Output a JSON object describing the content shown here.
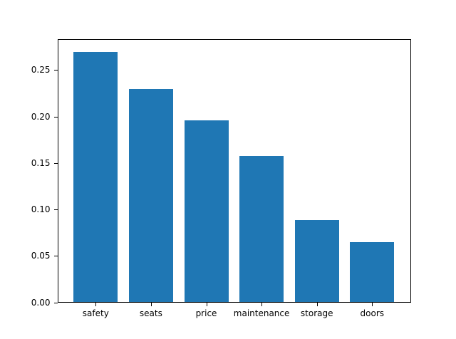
{
  "chart_data": {
    "type": "bar",
    "title": "",
    "xlabel": "",
    "ylabel": "",
    "categories": [
      "safety",
      "seats",
      "price",
      "maintenance",
      "storage",
      "doors"
    ],
    "values": [
      0.269,
      0.229,
      0.195,
      0.157,
      0.088,
      0.064
    ],
    "ylim": [
      0,
      0.2832
    ],
    "yticks": [
      0.0,
      0.05,
      0.1,
      0.15,
      0.2,
      0.25
    ],
    "ytick_labels": [
      "0.00",
      "0.05",
      "0.10",
      "0.15",
      "0.20",
      "0.25"
    ],
    "bar_color": "#1f77b4",
    "axis_color": "#000000",
    "background_color": "#ffffff",
    "grid": false,
    "legend": null
  }
}
